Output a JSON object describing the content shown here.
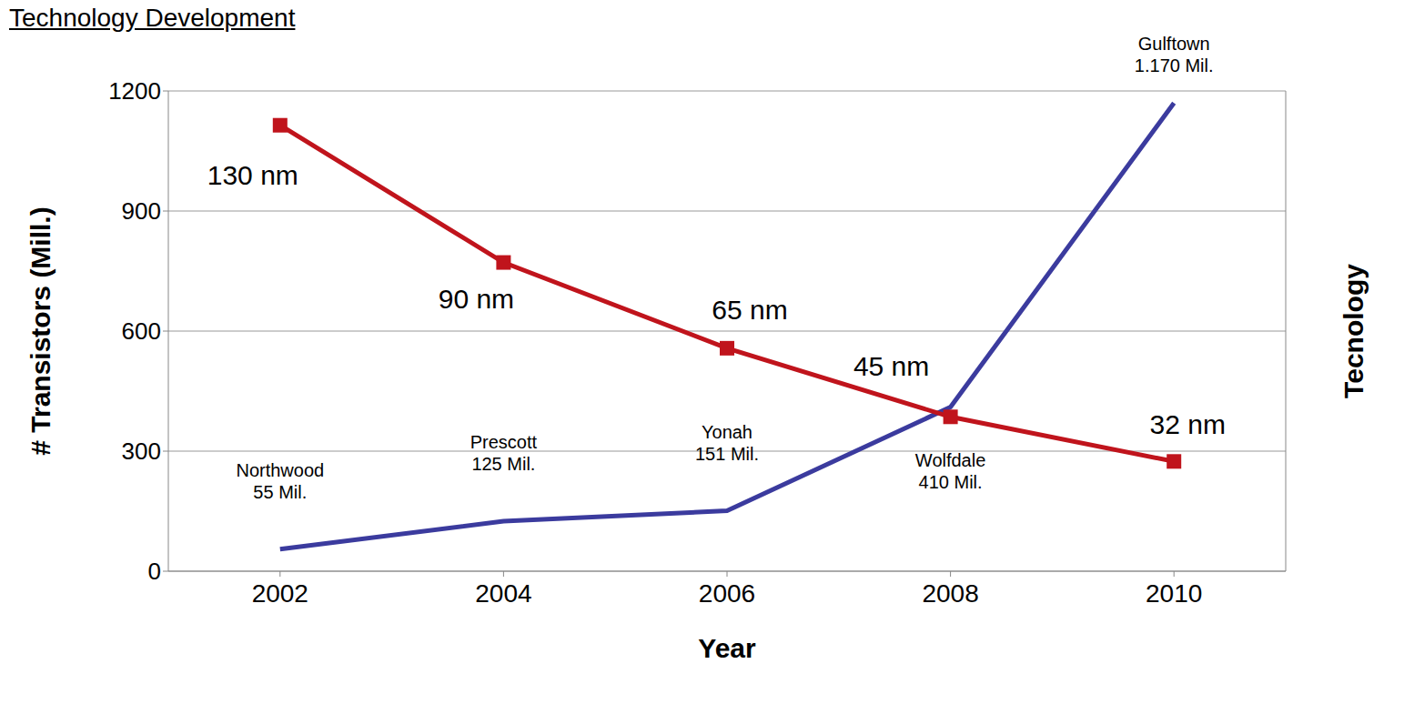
{
  "chart_data": {
    "type": "line",
    "title": "Technology Development",
    "x_label": "Year",
    "y_label": "# Transistors (Mill.)",
    "y2_label": "Tecnology",
    "x": [
      2002,
      2004,
      2006,
      2008,
      2010
    ],
    "xlim": [
      2001,
      2011
    ],
    "xticks": [
      2002,
      2004,
      2006,
      2008,
      2010
    ],
    "ylim": [
      0,
      1200
    ],
    "yticks": [
      0,
      300,
      600,
      900,
      1200
    ],
    "y2lim": [
      0,
      140
    ],
    "grid": true,
    "data_labels": true,
    "series": [
      {
        "color": "#3b3b9e",
        "marker": "none",
        "values": [
          55,
          125,
          151,
          410,
          1170
        ],
        "labels": [
          "Northwood",
          "Prescott",
          "Yonah",
          "Wolfdale",
          "Gulftown"
        ],
        "value_labels": [
          "55 Mil.",
          "125 Mil.",
          "151 Mil.",
          "410 Mil.",
          "1.170 Mil."
        ]
      },
      {
        "axis": "y2",
        "color": "#c0141c",
        "marker": "square",
        "values": [
          130,
          90,
          65,
          45,
          32
        ],
        "value_labels": [
          "130 nm",
          "90 nm",
          "65 nm",
          "45 nm",
          "32 nm"
        ]
      }
    ]
  }
}
